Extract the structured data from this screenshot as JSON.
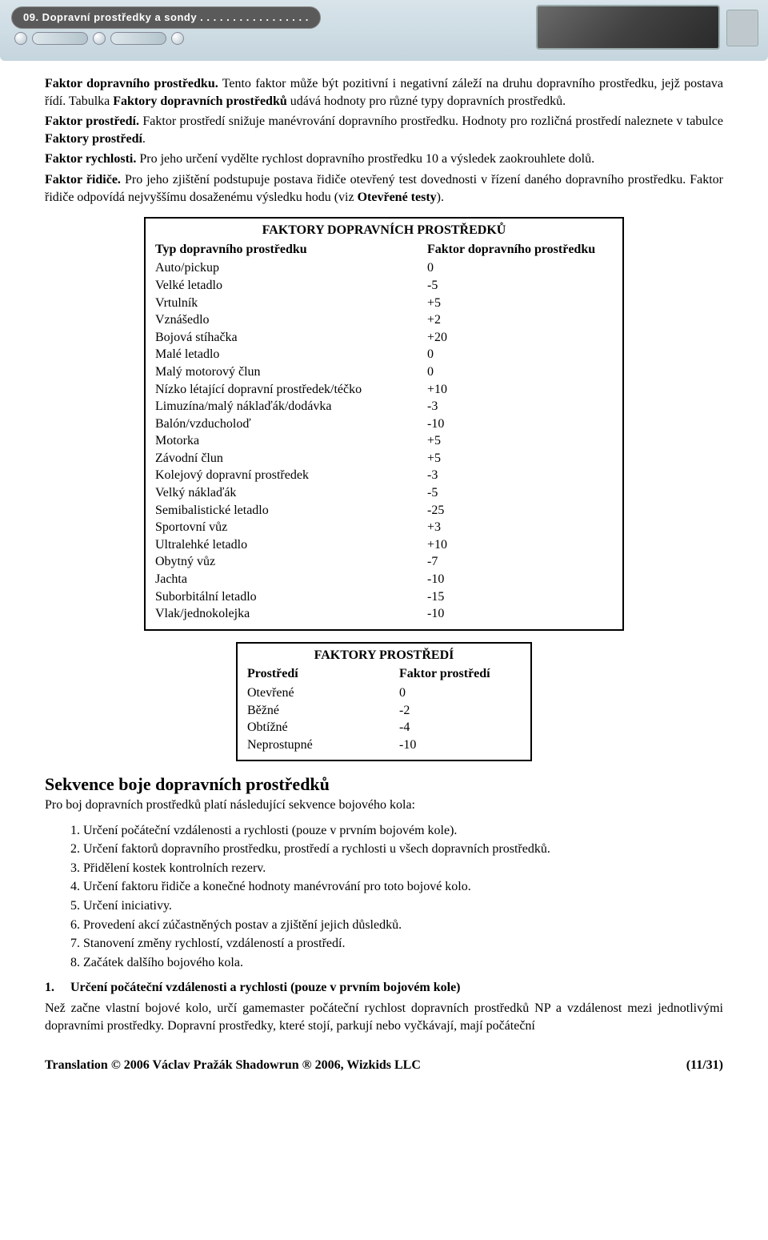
{
  "header": {
    "chapter": "09. Dopravní prostředky a sondy . . . . . . . . . . . . . . . . ."
  },
  "para1": {
    "s1": "Faktor dopravního prostředku.",
    "t1": " Tento faktor může být pozitivní i negativní záleží na druhu dopravního prostředku, jejž postava řídí. Tabulka ",
    "s2": "Faktory dopravních prostředků",
    "t2": " udává hodnoty pro různé typy dopravních prostředků."
  },
  "para2": {
    "s1": "Faktor prostředí.",
    "t1": " Faktor prostředí snižuje manévrování dopravního prostředku. Hodnoty pro rozličná prostředí naleznete v tabulce ",
    "s2": "Faktory prostředí",
    "t2": "."
  },
  "para3": {
    "s1": "Faktor rychlosti.",
    "t1": " Pro jeho určení vydělte rychlost dopravního prostředku 10 a výsledek zaokrouhlete dolů."
  },
  "para4": {
    "s1": "Faktor řidiče.",
    "t1": " Pro jeho zjištění podstupuje postava řidiče otevřený test dovednosti v řízení daného dopravního prostředku. Faktor řidiče odpovídá nejvyššímu dosaženému výsledku hodu (viz ",
    "s2": "Otevřené testy",
    "t2": ")."
  },
  "table1": {
    "title": "FAKTORY DOPRAVNÍCH PROSTŘEDKŮ",
    "col_l": "Typ dopravního prostředku",
    "col_r": "Faktor dopravního prostředku",
    "rows": [
      {
        "l": "Auto/pickup",
        "r": "0"
      },
      {
        "l": "Velké letadlo",
        "r": "-5"
      },
      {
        "l": "Vrtulník",
        "r": "+5"
      },
      {
        "l": "Vznášedlo",
        "r": "+2"
      },
      {
        "l": "Bojová stíhačka",
        "r": "+20"
      },
      {
        "l": "Malé letadlo",
        "r": "0"
      },
      {
        "l": "Malý motorový člun",
        "r": "0"
      },
      {
        "l": "Nízko létající dopravní prostředek/téčko",
        "r": "+10"
      },
      {
        "l": "Limuzína/malý náklaďák/dodávka",
        "r": "-3"
      },
      {
        "l": "Balón/vzducholoď",
        "r": "-10"
      },
      {
        "l": "Motorka",
        "r": "+5"
      },
      {
        "l": "Závodní člun",
        "r": "+5"
      },
      {
        "l": "Kolejový dopravní prostředek",
        "r": "-3"
      },
      {
        "l": "Velký náklaďák",
        "r": "-5"
      },
      {
        "l": "Semibalistické letadlo",
        "r": "-25"
      },
      {
        "l": "Sportovní vůz",
        "r": "+3"
      },
      {
        "l": "Ultralehké letadlo",
        "r": "+10"
      },
      {
        "l": "Obytný vůz",
        "r": "-7"
      },
      {
        "l": "Jachta",
        "r": "-10"
      },
      {
        "l": "Suborbitální letadlo",
        "r": "-15"
      },
      {
        "l": "Vlak/jednokolejka",
        "r": "-10"
      }
    ]
  },
  "table2": {
    "title": "FAKTORY PROSTŘEDÍ",
    "col_l": "Prostředí",
    "col_r": "Faktor prostředí",
    "rows": [
      {
        "l": "Otevřené",
        "r": "0"
      },
      {
        "l": "Běžné",
        "r": "-2"
      },
      {
        "l": "Obtížné",
        "r": "-4"
      },
      {
        "l": "Neprostupné",
        "r": "-10"
      }
    ]
  },
  "section": {
    "title": "Sekvence boje dopravních prostředků",
    "intro": "Pro boj dopravních prostředků platí následující sekvence bojového kola:"
  },
  "list": [
    "Určení počáteční vzdálenosti a rychlosti (pouze v prvním bojovém kole).",
    "Určení faktorů dopravního prostředku, prostředí a rychlosti u všech dopravních prostředků.",
    "Přidělení kostek kontrolních rezerv.",
    "Určení faktoru řidiče a konečné hodnoty manévrování pro toto bojové kolo.",
    "Určení iniciativy.",
    "Provedení akcí zúčastněných postav a zjištění jejich důsledků.",
    "Stanovení změny rychlostí, vzdáleností a prostředí.",
    "Začátek dalšího bojového kola."
  ],
  "step1": {
    "heading": "1.     Určení počáteční vzdálenosti a rychlosti (pouze v prvním bojovém kole)",
    "body": "Než začne vlastní bojové kolo, určí gamemaster počáteční rychlost dopravních prostředků NP a vzdálenost mezi jednotlivými dopravními prostředky. Dopravní prostředky, které stojí, parkují nebo vyčkávají, mají počáteční "
  },
  "footer": {
    "left": "Translation © 2006 Václav Pražák Shadowrun ® 2006, Wizkids LLC",
    "right": "(11/31)"
  }
}
